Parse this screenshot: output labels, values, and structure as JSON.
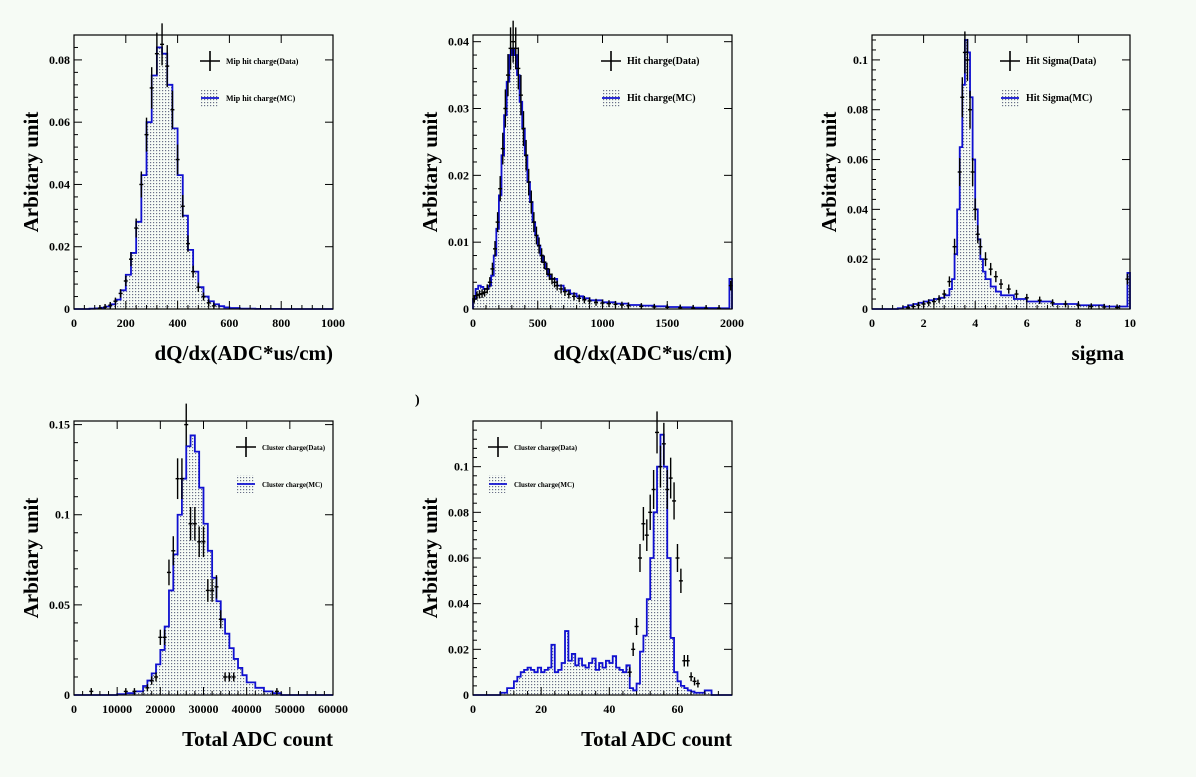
{
  "stray_mark": ")",
  "colors": {
    "background": "#f6fbf5",
    "mc_line": "#1010d0",
    "mc_fill": "#8a8fa8",
    "data": "#000000"
  },
  "chart_data": [
    {
      "type": "histogram",
      "xlabel": "dQ/dx(ADC*us/cm)",
      "ylabel": "Arbitary unit",
      "xlim": [
        0,
        1000
      ],
      "ylim": [
        0,
        0.088
      ],
      "xticks": [
        0,
        200,
        400,
        600,
        800,
        1000
      ],
      "xtick_labels": [
        "0",
        "200",
        "400",
        "600",
        "800",
        "1000"
      ],
      "yticks": [
        0,
        0.02,
        0.04,
        0.06,
        0.08
      ],
      "ytick_labels": [
        "0",
        "0.02",
        "0.04",
        "0.06",
        "0.08"
      ],
      "legend_position": "top-right",
      "series": [
        {
          "name": "Mip hit charge(Data)",
          "style": "points",
          "x": [
            100,
            120,
            140,
            160,
            180,
            200,
            220,
            240,
            260,
            280,
            300,
            320,
            340,
            360,
            380,
            400,
            420,
            440,
            460,
            480,
            500,
            520,
            540
          ],
          "y": [
            0.0003,
            0.0006,
            0.0012,
            0.0025,
            0.005,
            0.009,
            0.016,
            0.026,
            0.04,
            0.056,
            0.071,
            0.082,
            0.085,
            0.078,
            0.064,
            0.048,
            0.033,
            0.021,
            0.012,
            0.007,
            0.004,
            0.002,
            0.001
          ]
        },
        {
          "name": "Mip hit charge(MC)",
          "style": "step",
          "x": [
            0,
            20,
            40,
            60,
            80,
            100,
            120,
            140,
            160,
            180,
            200,
            220,
            240,
            260,
            280,
            300,
            320,
            340,
            360,
            380,
            400,
            420,
            440,
            460,
            480,
            500,
            520,
            540,
            560,
            580,
            600,
            640,
            700,
            800,
            900,
            1000
          ],
          "y": [
            0,
            0,
            0,
            0.0001,
            0.0002,
            0.0004,
            0.0008,
            0.0015,
            0.003,
            0.006,
            0.011,
            0.018,
            0.028,
            0.043,
            0.06,
            0.075,
            0.084,
            0.082,
            0.072,
            0.058,
            0.043,
            0.03,
            0.019,
            0.012,
            0.007,
            0.004,
            0.0025,
            0.0015,
            0.0009,
            0.0005,
            0.0003,
            0.0001,
            5e-05,
            0,
            0,
            0
          ]
        }
      ]
    },
    {
      "type": "histogram",
      "xlabel": "dQ/dx(ADC*us/cm)",
      "ylabel": "Arbitary unit",
      "xlim": [
        0,
        2000
      ],
      "ylim": [
        0,
        0.041
      ],
      "xticks": [
        0,
        500,
        1000,
        1500,
        2000
      ],
      "xtick_labels": [
        "0",
        "500",
        "1000",
        "1500",
        "2000"
      ],
      "yticks": [
        0,
        0.01,
        0.02,
        0.03,
        0.04
      ],
      "ytick_labels": [
        "0",
        "0.01",
        "0.02",
        "0.03",
        "0.04"
      ],
      "legend_position": "top-right",
      "series": [
        {
          "name": "Hit charge(Data)",
          "style": "points",
          "x": [
            10,
            30,
            50,
            70,
            90,
            110,
            130,
            150,
            170,
            190,
            210,
            230,
            250,
            270,
            290,
            310,
            330,
            350,
            370,
            390,
            410,
            430,
            450,
            470,
            490,
            510,
            530,
            550,
            570,
            590,
            610,
            630,
            650,
            680,
            710,
            740,
            780,
            820,
            860,
            900,
            950,
            1000,
            1050,
            1100,
            1150,
            1200,
            1300,
            1400,
            1500,
            1600,
            1700,
            1800,
            1900,
            1990
          ],
          "y": [
            0.0015,
            0.002,
            0.0022,
            0.0023,
            0.0025,
            0.003,
            0.004,
            0.006,
            0.009,
            0.013,
            0.018,
            0.024,
            0.03,
            0.035,
            0.039,
            0.04,
            0.039,
            0.036,
            0.032,
            0.027,
            0.023,
            0.019,
            0.016,
            0.013,
            0.011,
            0.0095,
            0.008,
            0.007,
            0.006,
            0.0052,
            0.0045,
            0.004,
            0.0035,
            0.003,
            0.0026,
            0.0022,
            0.0019,
            0.0016,
            0.0014,
            0.0012,
            0.001,
            0.0009,
            0.0008,
            0.0007,
            0.0006,
            0.0005,
            0.0004,
            0.0003,
            0.00025,
            0.0002,
            0.00015,
            0.0001,
            0.0001,
            0.0035
          ]
        },
        {
          "name": "Hit charge(MC)",
          "style": "step",
          "x": [
            0,
            20,
            40,
            60,
            80,
            100,
            120,
            140,
            160,
            180,
            200,
            220,
            240,
            260,
            280,
            300,
            320,
            340,
            360,
            380,
            400,
            420,
            440,
            460,
            480,
            500,
            520,
            540,
            560,
            580,
            600,
            650,
            700,
            750,
            800,
            850,
            900,
            1000,
            1100,
            1200,
            1300,
            1400,
            1500,
            1600,
            1700,
            1800,
            1900,
            1980,
            2000
          ],
          "y": [
            0.0015,
            0.003,
            0.0035,
            0.0033,
            0.003,
            0.003,
            0.0035,
            0.005,
            0.008,
            0.012,
            0.017,
            0.023,
            0.029,
            0.034,
            0.038,
            0.039,
            0.038,
            0.035,
            0.031,
            0.027,
            0.023,
            0.019,
            0.016,
            0.013,
            0.011,
            0.0095,
            0.008,
            0.007,
            0.006,
            0.005,
            0.0045,
            0.0035,
            0.0028,
            0.0023,
            0.0019,
            0.0016,
            0.0013,
            0.001,
            0.0008,
            0.0006,
            0.0005,
            0.0004,
            0.0003,
            0.00025,
            0.0002,
            0.00015,
            0.0001,
            0.0045,
            0.0045
          ]
        }
      ]
    },
    {
      "type": "histogram",
      "xlabel": "sigma",
      "ylabel": "Arbitary unit",
      "xlim": [
        0,
        10
      ],
      "ylim": [
        0,
        0.11
      ],
      "xticks": [
        0,
        2,
        4,
        6,
        8,
        10
      ],
      "xtick_labels": [
        "0",
        "2",
        "4",
        "6",
        "8",
        "10"
      ],
      "yticks": [
        0,
        0.02,
        0.04,
        0.06,
        0.08,
        0.1
      ],
      "ytick_labels": [
        "0",
        "0.02",
        "0.04",
        "0.06",
        "0.08",
        "0.1"
      ],
      "legend_position": "top-right",
      "series": [
        {
          "name": "Hit Sigma(Data)",
          "style": "points",
          "x": [
            1.4,
            1.6,
            1.8,
            2.0,
            2.2,
            2.4,
            2.6,
            2.8,
            3.0,
            3.2,
            3.4,
            3.5,
            3.6,
            3.7,
            3.8,
            3.9,
            4.0,
            4.1,
            4.2,
            4.4,
            4.6,
            4.8,
            5.0,
            5.3,
            5.6,
            6.0,
            6.5,
            7.0,
            7.5,
            8.0,
            8.5,
            9.0,
            9.5,
            9.9
          ],
          "y": [
            0.0005,
            0.001,
            0.0015,
            0.002,
            0.0025,
            0.003,
            0.004,
            0.006,
            0.011,
            0.025,
            0.055,
            0.085,
            0.103,
            0.1,
            0.08,
            0.055,
            0.04,
            0.03,
            0.025,
            0.02,
            0.016,
            0.013,
            0.01,
            0.008,
            0.006,
            0.0045,
            0.0035,
            0.0025,
            0.002,
            0.0015,
            0.001,
            0.0008,
            0.0006,
            0.012
          ]
        },
        {
          "name": "Hit Sigma(MC)",
          "style": "step",
          "x": [
            0,
            0.5,
            1.0,
            1.2,
            1.4,
            1.6,
            1.8,
            2.0,
            2.2,
            2.4,
            2.6,
            2.8,
            3.0,
            3.1,
            3.2,
            3.3,
            3.4,
            3.5,
            3.6,
            3.7,
            3.8,
            3.9,
            4.0,
            4.1,
            4.2,
            4.3,
            4.4,
            4.6,
            4.8,
            5.0,
            5.5,
            6.0,
            7.0,
            8.0,
            9.0,
            9.9,
            10
          ],
          "y": [
            0,
            0,
            0.0003,
            0.0008,
            0.0015,
            0.002,
            0.0025,
            0.003,
            0.0035,
            0.004,
            0.0045,
            0.0055,
            0.008,
            0.012,
            0.022,
            0.04,
            0.065,
            0.09,
            0.108,
            0.103,
            0.085,
            0.06,
            0.04,
            0.028,
            0.02,
            0.015,
            0.012,
            0.009,
            0.007,
            0.0055,
            0.004,
            0.003,
            0.002,
            0.0015,
            0.001,
            0.0145,
            0.0145
          ]
        }
      ]
    },
    {
      "type": "histogram",
      "xlabel": "Total ADC count",
      "ylabel": "Arbitary unit",
      "xlim": [
        0,
        60000
      ],
      "ylim": [
        0,
        0.152
      ],
      "xticks": [
        0,
        10000,
        20000,
        30000,
        40000,
        50000,
        60000
      ],
      "xtick_labels": [
        "0",
        "10000",
        "20000",
        "30000",
        "40000",
        "50000",
        "60000"
      ],
      "yticks": [
        0,
        0.05,
        0.1,
        0.15
      ],
      "ytick_labels": [
        "0",
        "0.05",
        "0.1",
        "0.15"
      ],
      "legend_position": "top-right",
      "series": [
        {
          "name": "Cluster charge(Data)",
          "style": "points",
          "x": [
            4000,
            12000,
            14000,
            17000,
            18000,
            19000,
            20000,
            21000,
            22000,
            23000,
            24000,
            25000,
            26000,
            27000,
            28000,
            29000,
            30000,
            31000,
            32000,
            33000,
            34000,
            35000,
            36000,
            37000,
            47000
          ],
          "y": [
            0.002,
            0.002,
            0.002,
            0.004,
            0.008,
            0.01,
            0.032,
            0.032,
            0.068,
            0.08,
            0.12,
            0.12,
            0.15,
            0.095,
            0.095,
            0.085,
            0.085,
            0.058,
            0.058,
            0.06,
            0.042,
            0.01,
            0.01,
            0.01,
            0.002
          ]
        },
        {
          "name": "Cluster charge(MC)",
          "style": "step",
          "x": [
            0,
            10000,
            12000,
            14000,
            16000,
            17000,
            18000,
            19000,
            20000,
            21000,
            22000,
            23000,
            24000,
            25000,
            26000,
            27000,
            28000,
            29000,
            30000,
            31000,
            32000,
            33000,
            34000,
            35000,
            36000,
            37000,
            38000,
            39000,
            40000,
            42000,
            44000,
            46000,
            48000,
            60000
          ],
          "y": [
            0,
            0.0005,
            0.001,
            0.002,
            0.005,
            0.008,
            0.012,
            0.017,
            0.025,
            0.038,
            0.058,
            0.078,
            0.1,
            0.12,
            0.138,
            0.144,
            0.135,
            0.115,
            0.095,
            0.08,
            0.065,
            0.052,
            0.042,
            0.034,
            0.026,
            0.02,
            0.015,
            0.011,
            0.007,
            0.004,
            0.002,
            0.001,
            0,
            0
          ]
        }
      ]
    },
    {
      "type": "histogram",
      "xlabel": "Total ADC count",
      "ylabel": "Arbitary unit",
      "xlim": [
        0,
        76
      ],
      "ylim": [
        0,
        0.12
      ],
      "xticks": [
        0,
        20,
        40,
        60
      ],
      "xtick_labels": [
        "0",
        "20",
        "40",
        "60"
      ],
      "yticks": [
        0,
        0.02,
        0.04,
        0.06,
        0.08,
        0.1
      ],
      "ytick_labels": [
        "0",
        "0.02",
        "0.04",
        "0.06",
        "0.08",
        "0.1"
      ],
      "legend_position": "top-left",
      "series": [
        {
          "name": "Cluster charge(Data)",
          "style": "points",
          "x": [
            46,
            47,
            48,
            49,
            50,
            51,
            52,
            53,
            54,
            55,
            56,
            57,
            58,
            59,
            60,
            61,
            62,
            63,
            64,
            65,
            66
          ],
          "y": [
            0.01,
            0.02,
            0.03,
            0.06,
            0.075,
            0.07,
            0.08,
            0.09,
            0.115,
            0.1,
            0.11,
            0.09,
            0.095,
            0.085,
            0.06,
            0.05,
            0.015,
            0.015,
            0.008,
            0.006,
            0.005
          ]
        },
        {
          "name": "Cluster charge(MC)",
          "style": "step",
          "x": [
            0,
            8,
            10,
            12,
            13,
            14,
            15,
            16,
            17,
            18,
            19,
            20,
            21,
            22,
            23,
            24,
            25,
            26,
            27,
            28,
            29,
            30,
            31,
            32,
            33,
            34,
            35,
            36,
            37,
            38,
            39,
            40,
            41,
            42,
            43,
            44,
            45,
            46,
            47,
            48,
            49,
            50,
            51,
            52,
            53,
            54,
            55,
            56,
            57,
            58,
            59,
            60,
            61,
            62,
            63,
            64,
            65,
            66,
            67,
            68,
            70,
            72,
            76
          ],
          "y": [
            0,
            0.001,
            0.003,
            0.006,
            0.008,
            0.01,
            0.011,
            0.012,
            0.011,
            0.01,
            0.012,
            0.01,
            0.011,
            0.012,
            0.022,
            0.01,
            0.011,
            0.014,
            0.028,
            0.015,
            0.018,
            0.013,
            0.016,
            0.013,
            0.012,
            0.014,
            0.016,
            0.011,
            0.014,
            0.012,
            0.015,
            0.014,
            0.017,
            0.012,
            0.011,
            0.01,
            0.013,
            0.003,
            0.002,
            0.005,
            0.019,
            0.026,
            0.042,
            0.06,
            0.08,
            0.1,
            0.114,
            0.1,
            0.06,
            0.025,
            0.01,
            0.006,
            0.004,
            0.003,
            0.002,
            0.0015,
            0.001,
            0.001,
            0.001,
            0.002,
            0,
            0,
            0
          ]
        }
      ]
    }
  ]
}
